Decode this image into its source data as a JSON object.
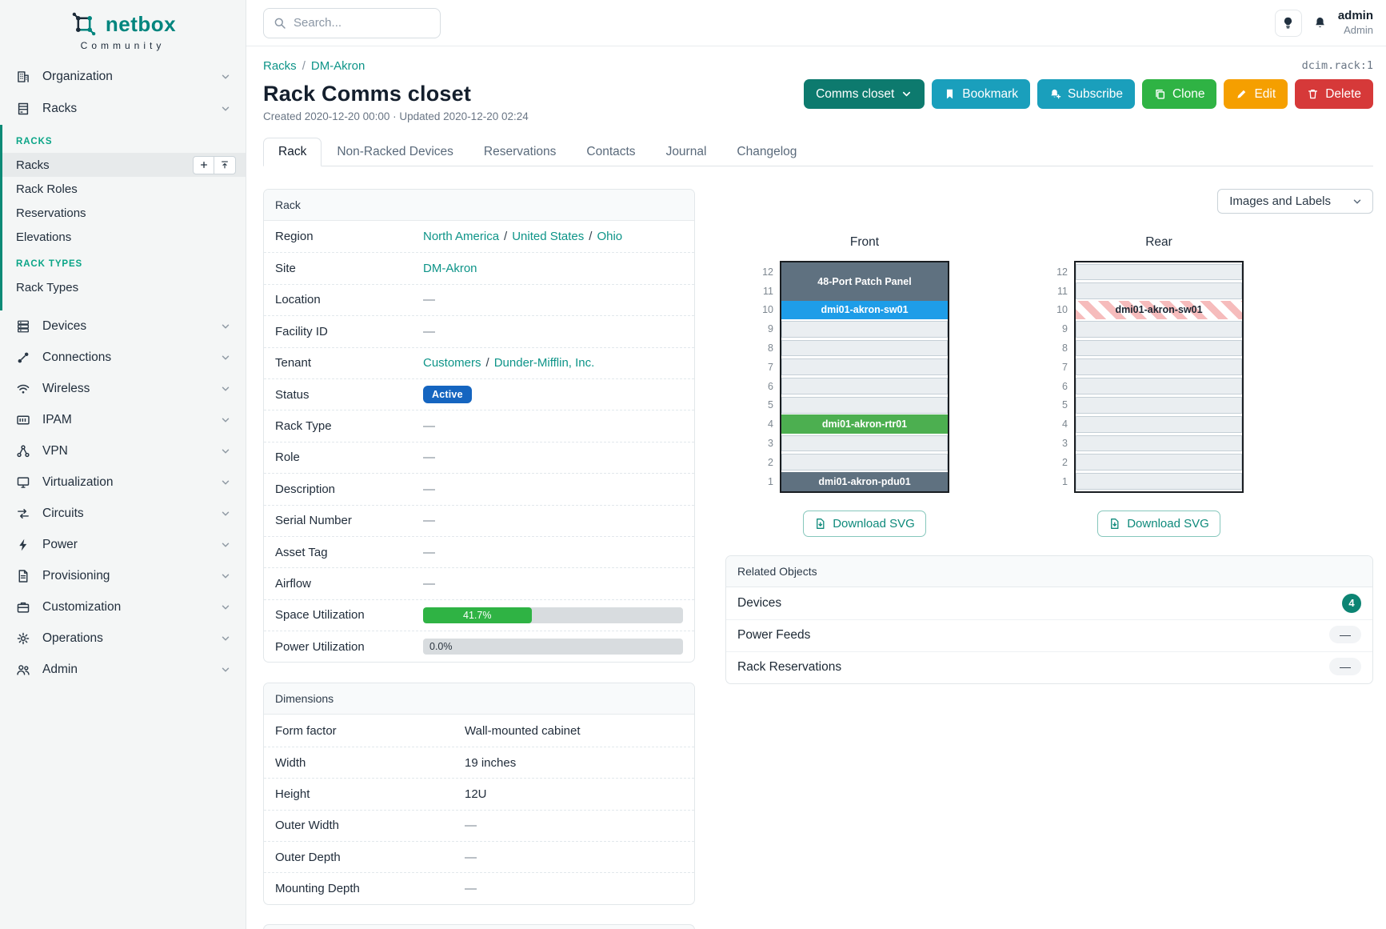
{
  "brand": {
    "name": "netbox",
    "subtitle": "Community"
  },
  "topbar": {
    "search_placeholder": "Search...",
    "user_name": "admin",
    "user_role": "Admin"
  },
  "sidebar": {
    "top_items": [
      {
        "label": "Organization",
        "icon": "building"
      },
      {
        "label": "Racks",
        "icon": "rack"
      }
    ],
    "groups": [
      {
        "header": "RACKS",
        "items": [
          {
            "label": "Racks",
            "active": true,
            "actions": [
              "plus",
              "upload"
            ]
          },
          {
            "label": "Rack Roles"
          },
          {
            "label": "Reservations"
          },
          {
            "label": "Elevations"
          }
        ]
      },
      {
        "header": "RACK TYPES",
        "items": [
          {
            "label": "Rack Types"
          }
        ]
      }
    ],
    "items": [
      {
        "label": "Devices",
        "icon": "server"
      },
      {
        "label": "Connections",
        "icon": "plug"
      },
      {
        "label": "Wireless",
        "icon": "wifi"
      },
      {
        "label": "IPAM",
        "icon": "ipam"
      },
      {
        "label": "VPN",
        "icon": "vpn"
      },
      {
        "label": "Virtualization",
        "icon": "monitor"
      },
      {
        "label": "Circuits",
        "icon": "circuits"
      },
      {
        "label": "Power",
        "icon": "bolt"
      },
      {
        "label": "Provisioning",
        "icon": "document"
      },
      {
        "label": "Customization",
        "icon": "briefcase"
      },
      {
        "label": "Operations",
        "icon": "gear"
      },
      {
        "label": "Admin",
        "icon": "users"
      }
    ]
  },
  "page": {
    "breadcrumb": [
      {
        "label": "Racks"
      },
      {
        "label": "DM-Akron"
      }
    ],
    "object_id": "dcim.rack:1",
    "title": "Rack Comms closet",
    "meta": "Created 2020-12-20 00:00 · Updated 2020-12-20 02:24",
    "actions": {
      "group": "Comms closet",
      "bookmark": "Bookmark",
      "subscribe": "Subscribe",
      "clone": "Clone",
      "edit": "Edit",
      "delete": "Delete"
    },
    "tabs": [
      {
        "label": "Rack",
        "active": true
      },
      {
        "label": "Non-Racked Devices"
      },
      {
        "label": "Reservations"
      },
      {
        "label": "Contacts"
      },
      {
        "label": "Journal"
      },
      {
        "label": "Changelog"
      }
    ]
  },
  "rack_panel": {
    "title": "Rack",
    "rows": [
      {
        "label": "Region",
        "type": "links",
        "links": [
          "North America",
          "United States",
          "Ohio"
        ]
      },
      {
        "label": "Site",
        "type": "links",
        "links": [
          "DM-Akron"
        ]
      },
      {
        "label": "Location",
        "type": "empty",
        "value": "—"
      },
      {
        "label": "Facility ID",
        "type": "empty",
        "value": "—"
      },
      {
        "label": "Tenant",
        "type": "links",
        "links": [
          "Customers",
          "Dunder-Mifflin, Inc."
        ]
      },
      {
        "label": "Status",
        "type": "badge",
        "value": "Active",
        "color": "#1565c0"
      },
      {
        "label": "Rack Type",
        "type": "empty",
        "value": "—"
      },
      {
        "label": "Role",
        "type": "empty",
        "value": "—"
      },
      {
        "label": "Description",
        "type": "empty",
        "value": "—"
      },
      {
        "label": "Serial Number",
        "type": "empty",
        "value": "—"
      },
      {
        "label": "Asset Tag",
        "type": "empty",
        "value": "—"
      },
      {
        "label": "Airflow",
        "type": "empty",
        "value": "—"
      },
      {
        "label": "Space Utilization",
        "type": "progress",
        "percent": 41.7,
        "display": "41.7%",
        "bar_color": "#2fb344"
      },
      {
        "label": "Power Utilization",
        "type": "progress",
        "percent": 0,
        "display": "0.0%",
        "bar_color": "#2fb344"
      }
    ]
  },
  "dimensions_panel": {
    "title": "Dimensions",
    "rows": [
      {
        "label": "Form factor",
        "type": "text",
        "value": "Wall-mounted cabinet"
      },
      {
        "label": "Width",
        "type": "text",
        "value": "19 inches"
      },
      {
        "label": "Height",
        "type": "text",
        "value": "12U"
      },
      {
        "label": "Outer Width",
        "type": "empty",
        "value": "—"
      },
      {
        "label": "Outer Depth",
        "type": "empty",
        "value": "—"
      },
      {
        "label": "Mounting Depth",
        "type": "empty",
        "value": "—"
      }
    ]
  },
  "elevations": {
    "view_selector": "Images and Labels",
    "download_label": "Download SVG",
    "unit_count": 12,
    "colors": {
      "slate": "#5f7180",
      "blue": "#1e9de8",
      "green": "#4caf50"
    },
    "racks": [
      {
        "title": "Front",
        "slots": [
          {
            "units": 2,
            "label": "48-Port Patch Panel",
            "style": "slate"
          },
          {
            "units": 1,
            "label": "dmi01-akron-sw01",
            "style": "blue"
          },
          {
            "units": 1,
            "style": "empty"
          },
          {
            "units": 1,
            "style": "empty"
          },
          {
            "units": 1,
            "style": "empty"
          },
          {
            "units": 1,
            "style": "empty"
          },
          {
            "units": 1,
            "style": "empty"
          },
          {
            "units": 1,
            "label": "dmi01-akron-rtr01",
            "style": "green"
          },
          {
            "units": 1,
            "style": "empty"
          },
          {
            "units": 1,
            "style": "empty"
          },
          {
            "units": 1,
            "label": "dmi01-akron-pdu01",
            "style": "slate"
          }
        ]
      },
      {
        "title": "Rear",
        "slots": [
          {
            "units": 1,
            "style": "empty"
          },
          {
            "units": 1,
            "style": "empty"
          },
          {
            "units": 1,
            "label": "dmi01-akron-sw01",
            "style": "striped"
          },
          {
            "units": 1,
            "style": "empty"
          },
          {
            "units": 1,
            "style": "empty"
          },
          {
            "units": 1,
            "style": "empty"
          },
          {
            "units": 1,
            "style": "empty"
          },
          {
            "units": 1,
            "style": "empty"
          },
          {
            "units": 1,
            "style": "empty"
          },
          {
            "units": 1,
            "style": "empty"
          },
          {
            "units": 1,
            "style": "empty"
          },
          {
            "units": 1,
            "style": "empty"
          }
        ]
      }
    ]
  },
  "related_objects": {
    "title": "Related Objects",
    "rows": [
      {
        "label": "Devices",
        "count": "4"
      },
      {
        "label": "Power Feeds",
        "count": "—"
      },
      {
        "label": "Rack Reservations",
        "count": "—"
      }
    ]
  }
}
